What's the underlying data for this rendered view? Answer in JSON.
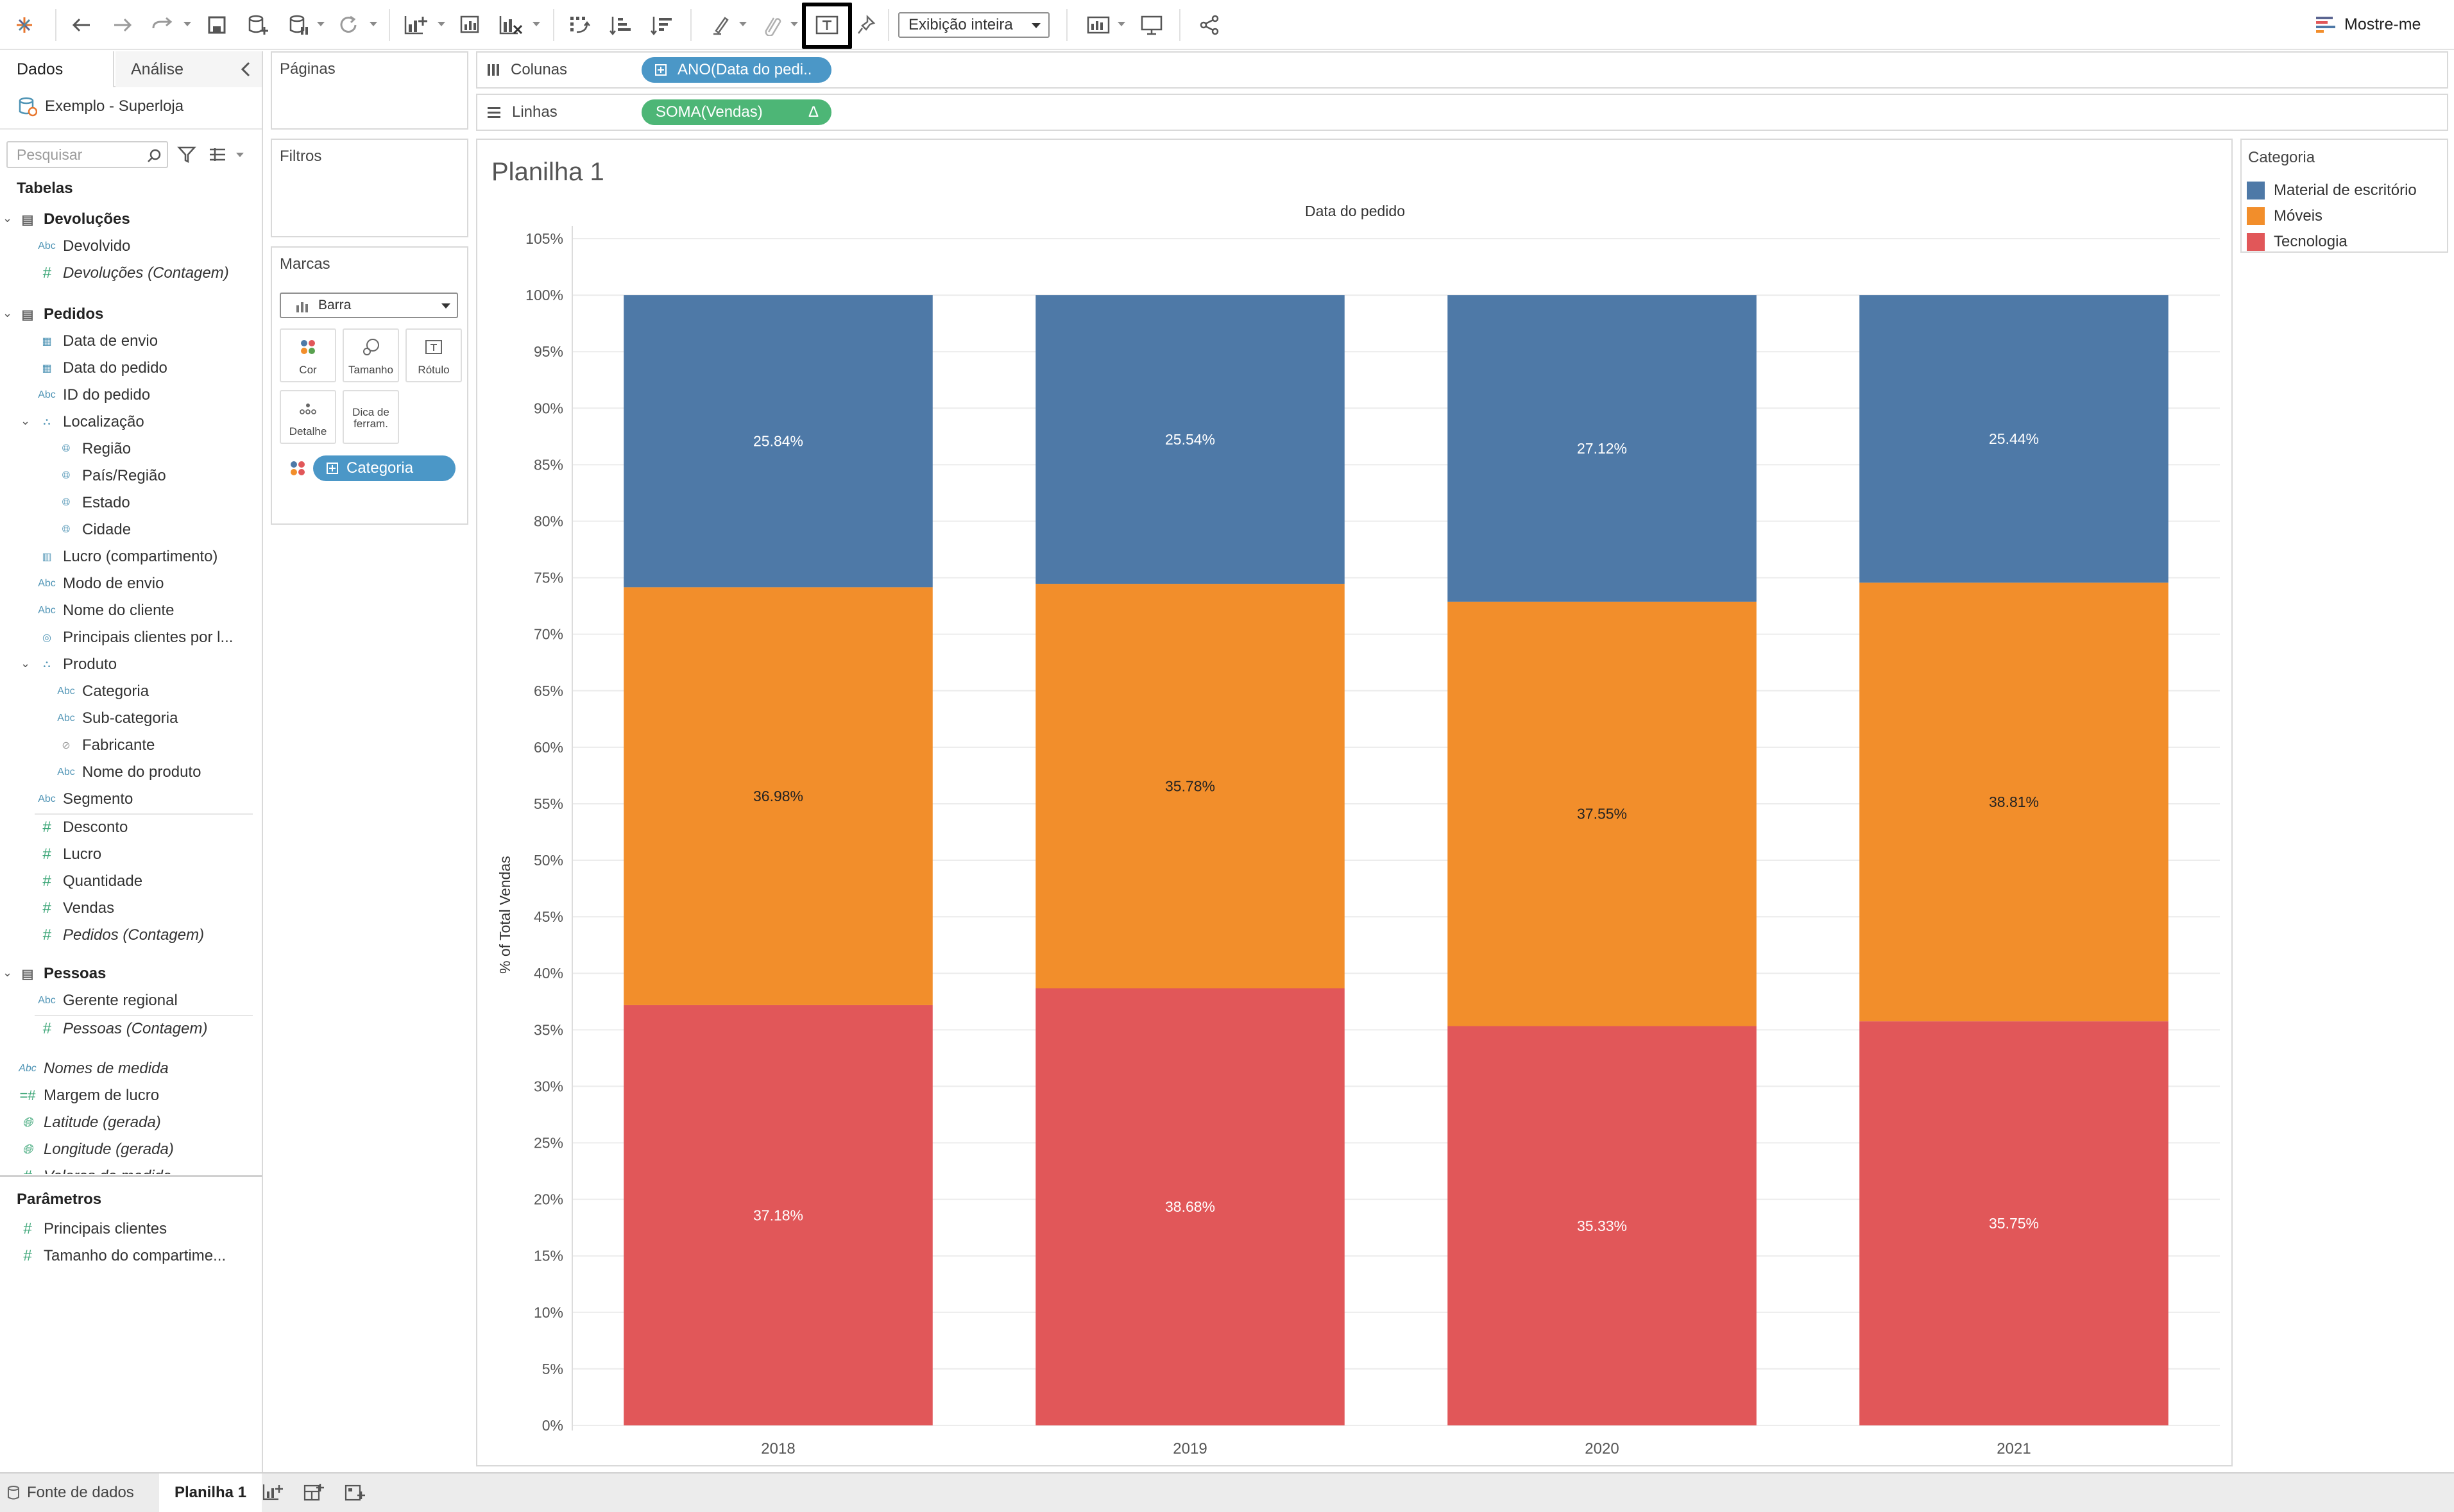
{
  "toolbar": {
    "fit_mode": "Exibição inteira",
    "show_me_label": "Mostre-me",
    "icons": [
      "tableau-logo-icon",
      "undo-icon",
      "redo-icon",
      "replay-icon",
      "save-icon",
      "new-datasource-icon",
      "pause-updates-icon",
      "refresh-icon",
      "new-worksheet-icon",
      "duplicate-sheet-icon",
      "clear-sheet-icon",
      "swap-icon",
      "sort-ascending-icon",
      "sort-descending-icon",
      "highlight-icon",
      "group-icon",
      "show-labels-icon",
      "pin-icon",
      "chart-type-icon",
      "presentation-icon",
      "share-icon"
    ],
    "highlight_target": "show-labels-icon"
  },
  "data_pane": {
    "tab_data": "Dados",
    "tab_analysis": "Análise",
    "datasource": "Exemplo - Superloja",
    "search_placeholder": "Pesquisar",
    "tables_heading": "Tabelas",
    "devolucoes": {
      "name": "Devoluções",
      "fields": [
        "Devolvido",
        "Devoluções (Contagem)"
      ]
    },
    "pedidos": {
      "name": "Pedidos",
      "fields": [
        "Data de envio",
        "Data do pedido",
        "ID do pedido",
        "Localização",
        "Região",
        "País/Região",
        "Estado",
        "Cidade",
        "Lucro (compartimento)",
        "Modo de envio",
        "Nome do cliente",
        "Principais clientes por l...",
        "Produto",
        "Categoria",
        "Sub-categoria",
        "Fabricante",
        "Nome do produto",
        "Segmento"
      ],
      "measures": [
        "Desconto",
        "Lucro",
        "Quantidade",
        "Vendas",
        "Pedidos (Contagem)"
      ]
    },
    "pessoas": {
      "name": "Pessoas",
      "fields": [
        "Gerente regional",
        "Pessoas (Contagem)"
      ]
    },
    "extra": [
      "Nomes de medida",
      "Margem de lucro",
      "Latitude (gerada)",
      "Longitude (gerada)",
      "Valores de medida"
    ],
    "parameters_heading": "Parâmetros",
    "parameters": [
      "Principais clientes",
      "Tamanho do compartime..."
    ]
  },
  "shelves": {
    "pages": "Páginas",
    "filters": "Filtros",
    "marks": "Marcas",
    "mark_type": "Barra",
    "mark_buttons": [
      "Cor",
      "Tamanho",
      "Rótulo",
      "Detalhe",
      "Dica de ferram."
    ],
    "color_pill": "Categoria",
    "columns_label": "Colunas",
    "columns_pill": "ANO(Data do pedi..",
    "rows_label": "Linhas",
    "rows_pill": "SOMA(Vendas)",
    "rows_pill_delta": "Δ"
  },
  "view": {
    "sheet_title": "Planilha 1"
  },
  "chart_data": {
    "type": "bar",
    "stacked": true,
    "title": "",
    "header": "Data do pedido",
    "xlabel": "",
    "ylabel": "% of Total Vendas",
    "ylim": [
      0,
      105
    ],
    "yticks": [
      "0%",
      "5%",
      "10%",
      "15%",
      "20%",
      "25%",
      "30%",
      "35%",
      "40%",
      "45%",
      "50%",
      "55%",
      "60%",
      "65%",
      "70%",
      "75%",
      "80%",
      "85%",
      "90%",
      "95%",
      "100%",
      "105%"
    ],
    "categories": [
      "2018",
      "2019",
      "2020",
      "2021"
    ],
    "series": [
      {
        "name": "Tecnologia",
        "color": "#e15759",
        "values": [
          37.18,
          38.68,
          35.33,
          35.75
        ],
        "labels": [
          "37.18%",
          "38.68%",
          "35.33%",
          "35.75%"
        ],
        "label_color": "#ffffff"
      },
      {
        "name": "Móveis",
        "color": "#f28e2b",
        "values": [
          36.98,
          35.78,
          37.55,
          38.81
        ],
        "labels": [
          "36.98%",
          "35.78%",
          "37.55%",
          "38.81%"
        ],
        "label_color": "#222222"
      },
      {
        "name": "Material de escritório",
        "color": "#4e79a7",
        "values": [
          25.84,
          25.54,
          27.12,
          25.44
        ],
        "labels": [
          "25.84%",
          "25.54%",
          "27.12%",
          "25.44%"
        ],
        "label_color": "#ffffff"
      }
    ],
    "grid": true,
    "legend": "right"
  },
  "legend": {
    "title": "Categoria",
    "items": [
      {
        "label": "Material de escritório",
        "color": "#4e79a7"
      },
      {
        "label": "Móveis",
        "color": "#f28e2b"
      },
      {
        "label": "Tecnologia",
        "color": "#e15759"
      }
    ]
  },
  "bottom_tabs": {
    "datasource_tab": "Fonte de dados",
    "sheet_tab": "Planilha 1"
  }
}
